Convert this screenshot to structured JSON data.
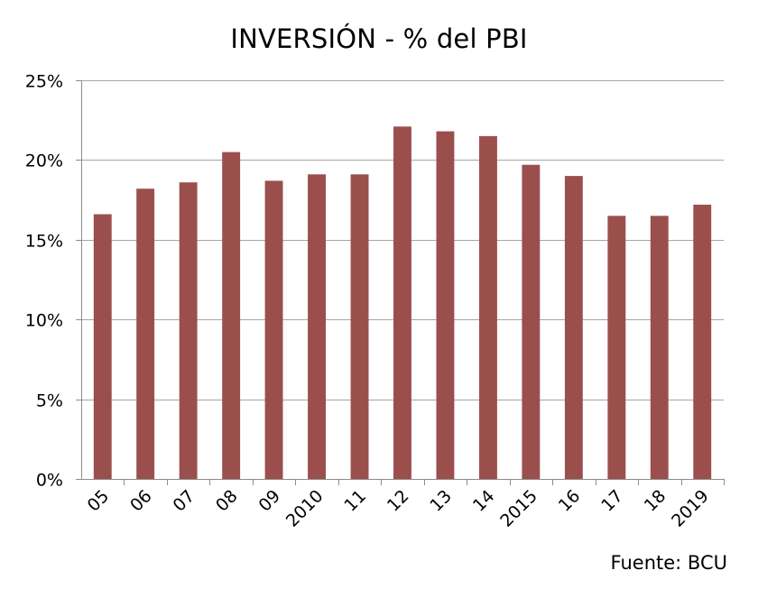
{
  "chart_data": {
    "type": "bar",
    "title": "INVERSIÓN - % del PBI",
    "source": "Fuente: BCU",
    "xlabel": "",
    "ylabel": "",
    "categories": [
      "05",
      "06",
      "07",
      "08",
      "09",
      "2010",
      "11",
      "12",
      "13",
      "14",
      "2015",
      "16",
      "17",
      "18",
      "2019"
    ],
    "values": [
      16.6,
      18.2,
      18.6,
      20.5,
      18.7,
      19.1,
      19.1,
      22.1,
      21.8,
      21.5,
      19.7,
      19.0,
      16.5,
      16.5,
      17.2
    ],
    "value_unit": "%",
    "ylim": [
      0,
      25
    ],
    "yticks": [
      0,
      5,
      10,
      15,
      20,
      25
    ],
    "ytick_labels": [
      "0%",
      "5%",
      "10%",
      "15%",
      "20%",
      "25%"
    ],
    "grid": true,
    "legend": "none",
    "colors": {
      "bar": "#9B4F4D",
      "grid": "#A6A6A6",
      "axis": "#8C8C8C"
    }
  }
}
